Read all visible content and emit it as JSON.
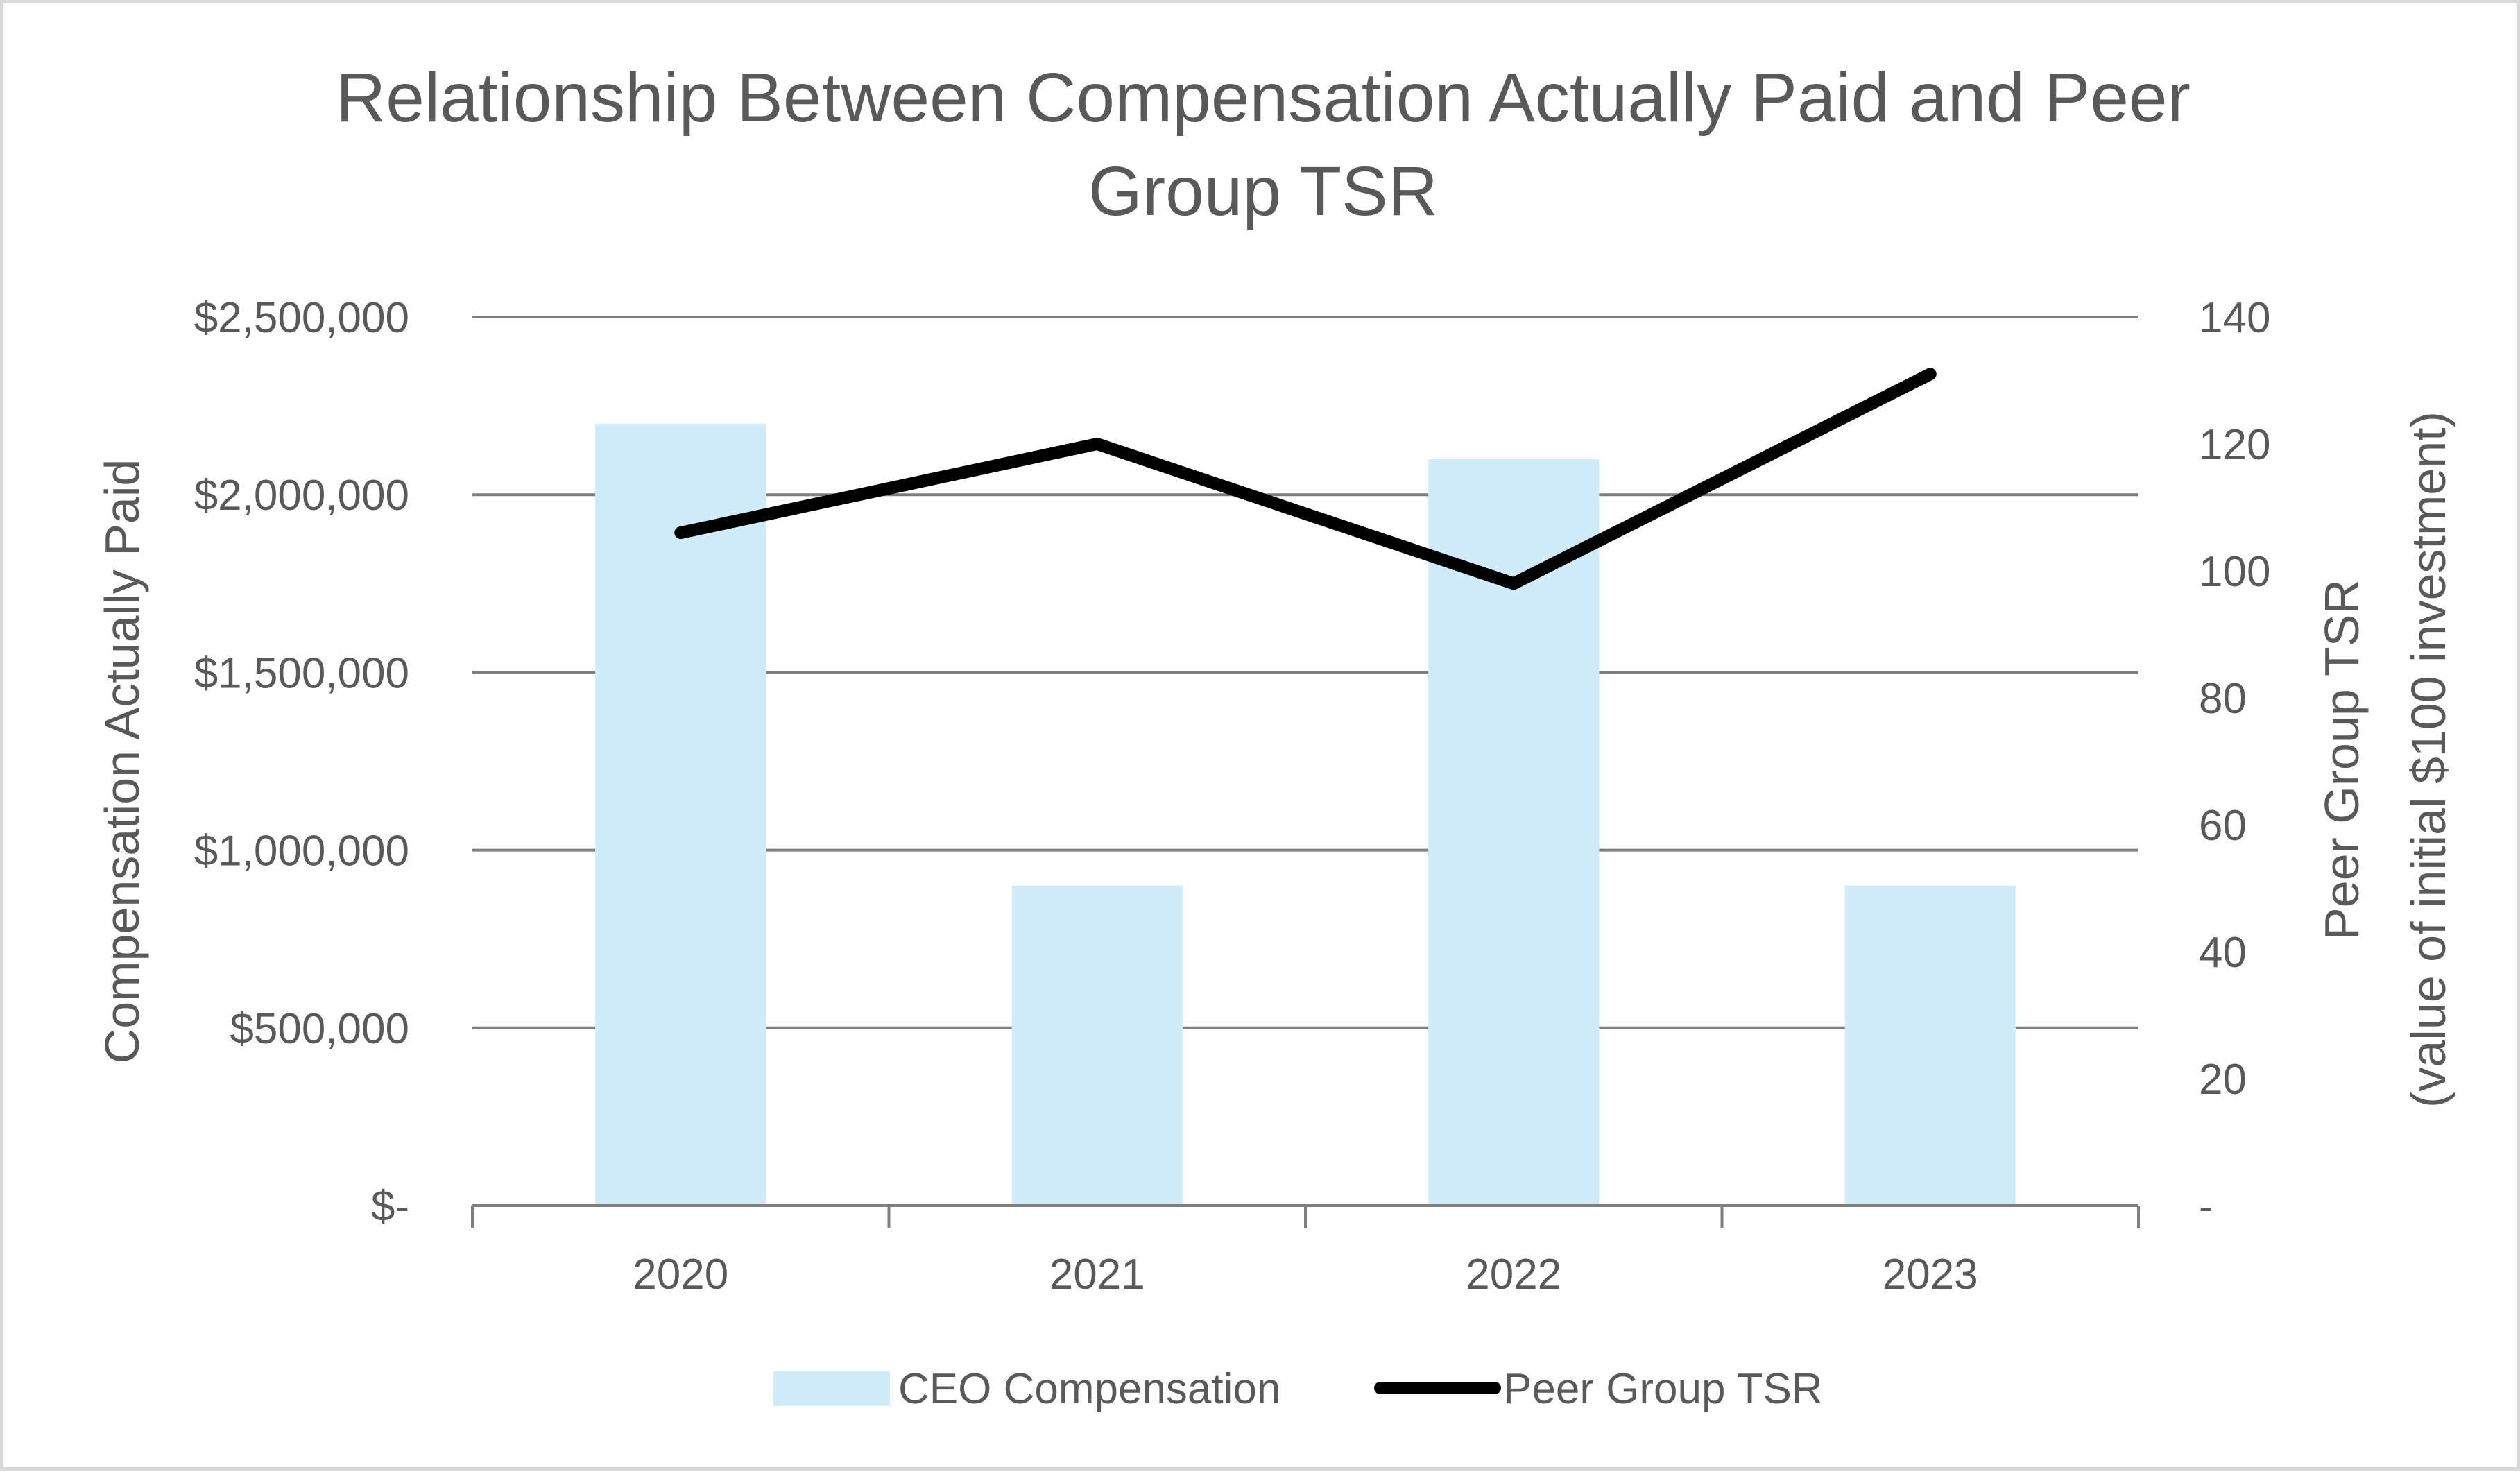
{
  "chart_data": {
    "type": "bar",
    "title_lines": [
      "Relationship Between Compensation Actually Paid and Peer",
      "Group TSR"
    ],
    "categories": [
      "2020",
      "2021",
      "2022",
      "2023"
    ],
    "series": [
      {
        "name": "CEO Compensation",
        "kind": "bar",
        "axis": "left",
        "values": [
          2200000,
          900000,
          2100000,
          900000
        ]
      },
      {
        "name": "Peer Group TSR",
        "kind": "line",
        "axis": "right",
        "values": [
          106,
          120,
          98,
          131
        ]
      }
    ],
    "left_axis": {
      "label": "Compensation Actually Paid",
      "range": [
        0,
        2500000
      ],
      "tick_values": [
        0,
        500000,
        1000000,
        1500000,
        2000000,
        2500000
      ],
      "tick_labels": [
        "$-",
        "$500,000",
        "$1,000,000",
        "$1,500,000",
        "$2,000,000",
        "$2,500,000"
      ]
    },
    "right_axis": {
      "label_lines": [
        "Peer Group TSR",
        "(value of initial $100 investment)"
      ],
      "range": [
        0,
        140
      ],
      "tick_values": [
        0,
        20,
        40,
        60,
        80,
        100,
        120,
        140
      ],
      "tick_labels": [
        "-",
        "20",
        "40",
        "60",
        "80",
        "100",
        "120",
        "140"
      ]
    },
    "grid": true,
    "legend_position": "bottom",
    "colors": {
      "bar": "#d0ecfb",
      "line": "#000000",
      "grid": "#7f7f7f",
      "text": "#595959"
    }
  }
}
